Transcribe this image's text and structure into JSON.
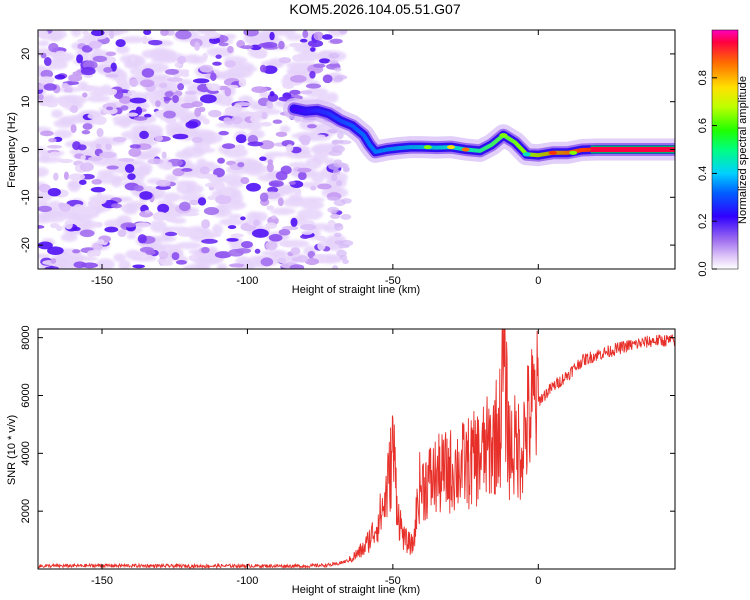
{
  "title": "KOM5.2026.104.05.51.G07",
  "chart_data": [
    {
      "type": "heatmap",
      "xlabel": "Height of straight line (km)",
      "ylabel": "Frequency (Hz)",
      "xlim": [
        -172,
        47
      ],
      "ylim": [
        -25,
        25
      ],
      "xticks": [
        -150,
        -100,
        -50,
        0
      ],
      "xtick_labels": [
        "-150",
        "-100",
        "-50",
        "0"
      ],
      "yticks": [
        20,
        10,
        0,
        -10,
        -20
      ],
      "ytick_labels": [
        "20",
        "10",
        "0",
        "-10",
        "-20"
      ],
      "noise_region_x": [
        -172,
        -69
      ],
      "signal_ridge": {
        "x": [
          -84,
          -80,
          -76,
          -72,
          -68,
          -64,
          -60,
          -58,
          -56,
          -52,
          -48,
          -44,
          -40,
          -35,
          -30,
          -25,
          -20,
          -16,
          -12,
          -8,
          -4,
          0,
          5,
          10,
          15,
          20,
          47
        ],
        "y": [
          8.5,
          8,
          8.2,
          7.5,
          6,
          5,
          3,
          1,
          -0.5,
          0,
          0.3,
          0.5,
          0.5,
          0.4,
          0.5,
          0,
          -0.3,
          1,
          3,
          1.5,
          -1,
          -1.2,
          -0.7,
          -0.7,
          -0.1,
          0,
          0
        ]
      },
      "colorbar": {
        "label": "Normalized spectral amplitude",
        "ticks": [
          0.0,
          0.2,
          0.4,
          0.6,
          0.8
        ],
        "tick_labels": [
          "0.0",
          "0.2",
          "0.4",
          "0.6",
          "0.8"
        ],
        "range": [
          0,
          1
        ]
      }
    },
    {
      "type": "line",
      "xlabel": "Height of straight line (km)",
      "ylabel": "SNR (10 * v/v)",
      "xlim": [
        -172,
        47
      ],
      "ylim": [
        0,
        8300
      ],
      "xticks": [
        -150,
        -100,
        -50,
        0
      ],
      "xtick_labels": [
        "-150",
        "-100",
        "-50",
        "0"
      ],
      "yticks": [
        2000,
        4000,
        6000,
        8000
      ],
      "ytick_labels": [
        "2000",
        "4000",
        "6000",
        "8000"
      ],
      "series": [
        {
          "name": "SNR",
          "color": "#e8302a",
          "x": [
            -172,
            -150,
            -120,
            -100,
            -80,
            -70,
            -65,
            -60,
            -56,
            -53,
            -51,
            -50,
            -48,
            -46,
            -43,
            -41,
            -38,
            -35,
            -30,
            -25,
            -20,
            -16,
            -13,
            -12,
            -10,
            -6,
            -2,
            0,
            5,
            10,
            15,
            20,
            30,
            40,
            47
          ],
          "y": [
            100,
            120,
            100,
            110,
            100,
            150,
            300,
            700,
            1400,
            2200,
            3300,
            4300,
            1800,
            1000,
            800,
            2800,
            3000,
            3200,
            3400,
            3600,
            3900,
            4300,
            5000,
            7300,
            4200,
            4200,
            5600,
            5800,
            6300,
            6700,
            7200,
            7400,
            7700,
            7900,
            7900
          ]
        }
      ]
    }
  ]
}
